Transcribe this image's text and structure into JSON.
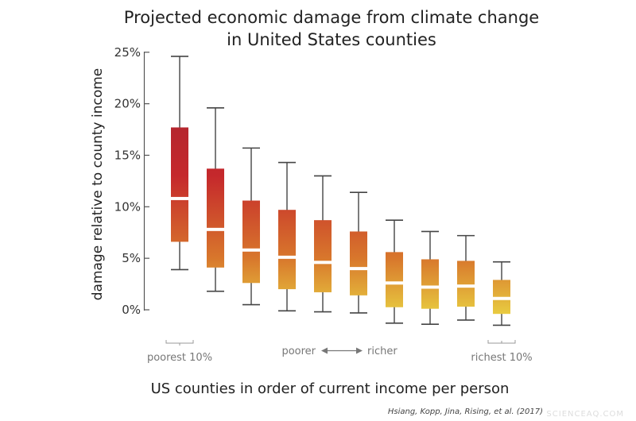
{
  "chart_data": {
    "type": "box",
    "title": [
      "Projected economic damage from climate change",
      "in United States counties"
    ],
    "ylabel": "damage relative to county income",
    "xlabel": "US counties in order of current income per person",
    "ylim": [
      -2,
      25
    ],
    "yticks": [
      0,
      5,
      10,
      15,
      20,
      25
    ],
    "ytick_labels": [
      "0%",
      "5%",
      "10%",
      "15%",
      "20%",
      "25%"
    ],
    "grid": false,
    "annotations": {
      "poorest": "poorest 10%",
      "richest": "richest 10%",
      "poorer": "poorer",
      "richer": "richer"
    },
    "boxes": [
      {
        "low": 3.9,
        "q1": 6.6,
        "median": 10.8,
        "q3": 17.7,
        "high": 24.6
      },
      {
        "low": 1.8,
        "q1": 4.1,
        "median": 7.8,
        "q3": 13.7,
        "high": 19.6
      },
      {
        "low": 0.5,
        "q1": 2.6,
        "median": 5.8,
        "q3": 10.6,
        "high": 15.7
      },
      {
        "low": -0.1,
        "q1": 2.0,
        "median": 5.1,
        "q3": 9.7,
        "high": 14.3
      },
      {
        "low": -0.2,
        "q1": 1.7,
        "median": 4.6,
        "q3": 8.7,
        "high": 13.0
      },
      {
        "low": -0.3,
        "q1": 1.4,
        "median": 4.0,
        "q3": 7.6,
        "high": 11.4
      },
      {
        "low": -1.3,
        "q1": 0.25,
        "median": 2.6,
        "q3": 5.6,
        "high": 8.7
      },
      {
        "low": -1.4,
        "q1": 0.1,
        "median": 2.2,
        "q3": 4.9,
        "high": 7.6
      },
      {
        "low": -1.0,
        "q1": 0.3,
        "median": 2.3,
        "q3": 4.75,
        "high": 7.2
      },
      {
        "low": -1.5,
        "q1": -0.4,
        "median": 1.1,
        "q3": 2.9,
        "high": 4.65
      }
    ],
    "colors": {
      "high": "#9c2331",
      "mid": "#c5282c",
      "low": "#d8772c",
      "zero": "#e6c23e",
      "neg": "#f0de45"
    }
  },
  "citation": "Hsiang, Kopp, Jina, Rising, et al. (2017)",
  "watermark": "SCIENCEAQ.COM"
}
